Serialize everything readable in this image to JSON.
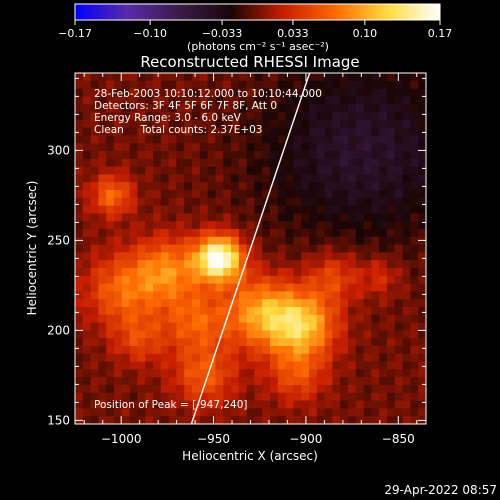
{
  "colorbar": {
    "tick_labels": [
      "−0.17",
      "−0.10",
      "−0.033",
      "0.033",
      "0.10",
      "0.17"
    ],
    "tick_values": [
      -0.17,
      -0.1,
      -0.033,
      0.033,
      0.1,
      0.17
    ],
    "range": [
      -0.17,
      0.17
    ],
    "units_label": "(photons cm⁻² s⁻¹ asec⁻²)"
  },
  "chart_data": {
    "type": "heatmap",
    "title": "Reconstructed RHESSI Image",
    "xlabel": "Heliocentric X (arcsec)",
    "ylabel": "Heliocentric Y (arcsec)",
    "xlim": [
      -1025,
      -835
    ],
    "ylim": [
      148,
      343
    ],
    "x_ticks": [
      -1000,
      -950,
      -900,
      -850
    ],
    "x_tick_labels": [
      "−1000",
      "−950",
      "−900",
      "−850"
    ],
    "y_ticks": [
      150,
      200,
      250,
      300
    ],
    "y_tick_labels": [
      "150",
      "200",
      "250",
      "300"
    ],
    "grid": false,
    "peak_position": [
      -947,
      240
    ],
    "limb_line": [
      [
        -962,
        148
      ],
      [
        -898,
        343
      ]
    ],
    "emission_sources": [
      {
        "x": -947,
        "y": 240,
        "sigma": 9,
        "value": 0.17
      },
      {
        "x": -902,
        "y": 203,
        "sigma": 13,
        "value": 0.11
      },
      {
        "x": -925,
        "y": 210,
        "sigma": 14,
        "value": 0.09
      },
      {
        "x": -975,
        "y": 233,
        "sigma": 13,
        "value": 0.08
      },
      {
        "x": -1000,
        "y": 222,
        "sigma": 14,
        "value": 0.065
      },
      {
        "x": -960,
        "y": 205,
        "sigma": 12,
        "value": 0.06
      },
      {
        "x": -1005,
        "y": 275,
        "sigma": 8,
        "value": 0.07
      },
      {
        "x": -885,
        "y": 230,
        "sigma": 10,
        "value": 0.05
      },
      {
        "x": -955,
        "y": 175,
        "sigma": 12,
        "value": 0.06
      },
      {
        "x": -905,
        "y": 175,
        "sigma": 11,
        "value": 0.05
      },
      {
        "x": -990,
        "y": 195,
        "sigma": 10,
        "value": 0.045
      },
      {
        "x": -860,
        "y": 230,
        "sigma": 8,
        "value": 0.035
      }
    ],
    "info_lines": [
      "28-Feb-2003 10:10:12.000 to 10:10:44.000",
      "Detectors: 3F 4F 5F 6F 7F 8F, Att 0",
      "Energy Range: 3.0 - 6.0 keV",
      "Clean     Total counts: 2.37E+03"
    ],
    "peak_label": "Position of Peak = [-947,240]"
  },
  "colors": {
    "background": "#000000",
    "colormap": [
      "#0000ff",
      "#5a2aa8",
      "#3c1a4a",
      "#1a0505",
      "#c81e00",
      "#ff6a00",
      "#ffdd40",
      "#ffffff"
    ]
  },
  "footer": {
    "timestamp": "29-Apr-2022 08:57"
  }
}
